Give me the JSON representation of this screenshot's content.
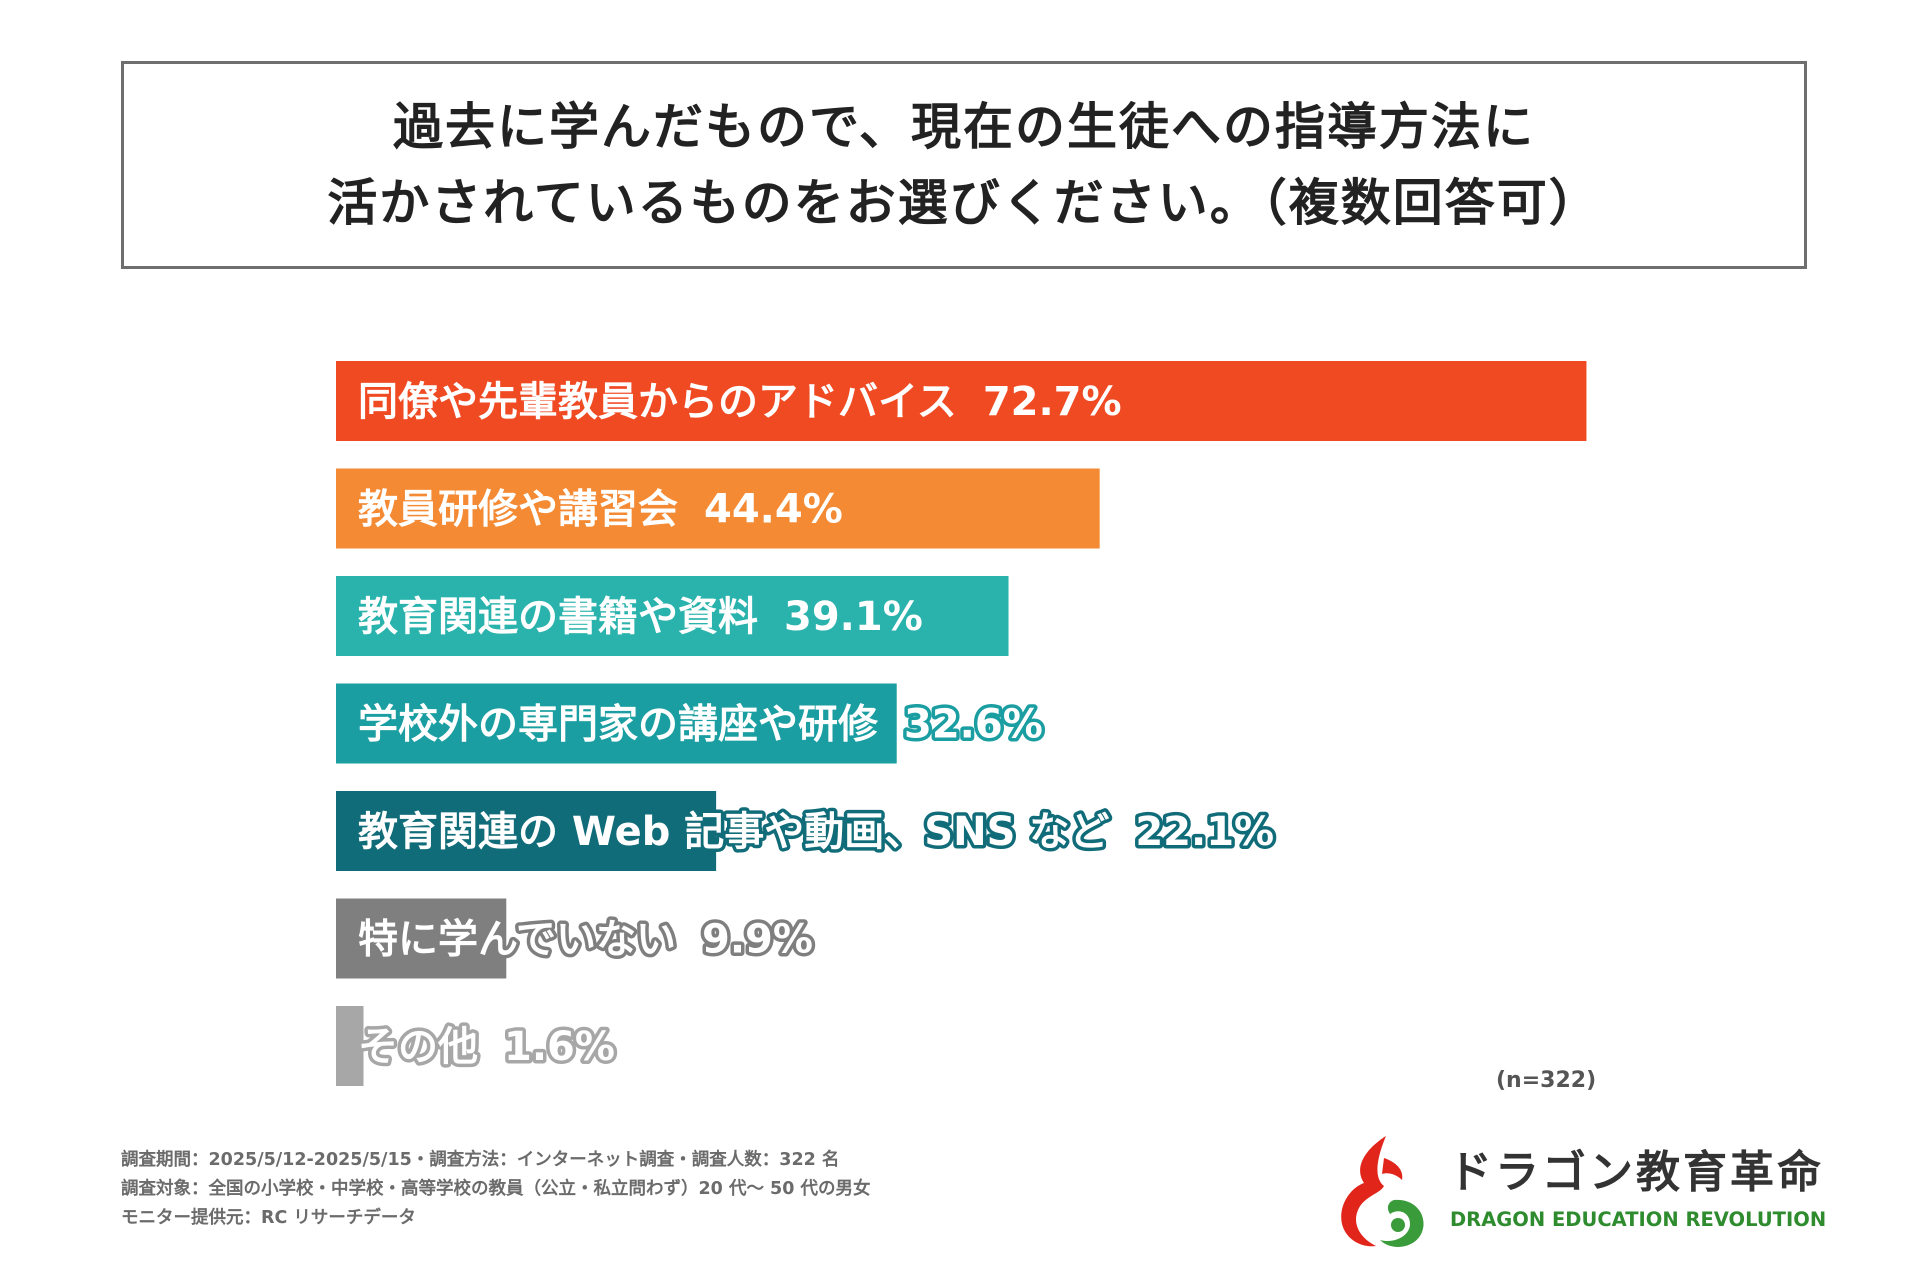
{
  "title": {
    "line1": "過去に学んだもので、現在の生徒への指導方法に",
    "line2": "活かされているものをお選びください。（複数回答可）"
  },
  "chart_data": {
    "type": "bar",
    "orientation": "horizontal",
    "categories": [
      "同僚や先輩教員からのアドバイス",
      "教員研修や講習会",
      "教育関連の書籍や資料",
      "学校外の専門家の講座や研修",
      "教育関連の Web 記事や動画、SNS など",
      "特に学んでいない",
      "その他"
    ],
    "values": [
      72.7,
      44.4,
      39.1,
      32.6,
      22.1,
      9.9,
      1.6
    ],
    "value_labels": [
      "72.7%",
      "44.4%",
      "39.1%",
      "32.6%",
      "22.1%",
      "9.9%",
      "1.6%"
    ],
    "colors": [
      "#f04a23",
      "#f48a33",
      "#2ab3ad",
      "#1a9ea1",
      "#116c79",
      "#7f7f7f",
      "#a7a7a7"
    ],
    "unit": "%",
    "xlim": [
      0,
      100
    ],
    "grid": false,
    "legend": "none"
  },
  "sample_note": "(n=322)",
  "footnotes": [
    "調査期間：2025/5/12-2025/5/15・調査方法：インターネット調査・調査人数：322 名",
    "調査対象：全国の小学校・中学校・高等学校の教員（公立・私立問わず）20 代〜 50 代の男女",
    "モニター提供元：RC リサーチデータ"
  ],
  "logo": {
    "name_jp": "ドラゴン教育革命",
    "name_en": "DRAGON EDUCATION REVOLUTION",
    "colors": {
      "red": "#e1251b",
      "green": "#3a9b3a"
    }
  }
}
